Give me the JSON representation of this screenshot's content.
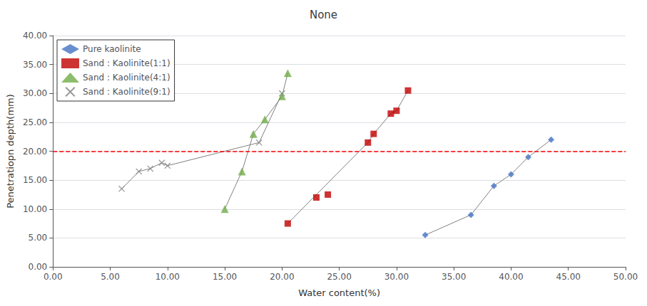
{
  "chart_data": {
    "type": "scatter",
    "title": "None",
    "xlabel": "Water content(%)",
    "ylabel": "Penetratiopn depth(mm)",
    "xlim": [
      0.0,
      50.0
    ],
    "ylim": [
      0.0,
      40.0
    ],
    "xticks": [
      {
        "value": 0.0,
        "label": "0.00"
      },
      {
        "value": 5.0,
        "label": "5.00"
      },
      {
        "value": 10.0,
        "label": "10.00"
      },
      {
        "value": 15.0,
        "label": "15.00"
      },
      {
        "value": 20.0,
        "label": "20.00"
      },
      {
        "value": 25.0,
        "label": "25.00"
      },
      {
        "value": 30.0,
        "label": "30.00"
      },
      {
        "value": 35.0,
        "label": "35.00"
      },
      {
        "value": 40.0,
        "label": "40.00"
      },
      {
        "value": 45.0,
        "label": "45.00"
      },
      {
        "value": 50.0,
        "label": "50.00"
      }
    ],
    "yticks": [
      {
        "value": 0.0,
        "label": "0.00"
      },
      {
        "value": 5.0,
        "label": "5.00"
      },
      {
        "value": 10.0,
        "label": "10.00"
      },
      {
        "value": 15.0,
        "label": "15.00"
      },
      {
        "value": 20.0,
        "label": "20.00"
      },
      {
        "value": 25.0,
        "label": "25.00"
      },
      {
        "value": 30.0,
        "label": "30.00"
      },
      {
        "value": 35.0,
        "label": "35.00"
      },
      {
        "value": 40.0,
        "label": "40.00"
      }
    ],
    "grid": "y",
    "legend": "upper left",
    "hline": {
      "y": 20.0,
      "color": "#ff0000",
      "line_style": "dashed"
    },
    "series": [
      {
        "name": "Pure kaolinite",
        "color": "#4472c4",
        "marker": "diamond",
        "x": [
          32.5,
          36.5,
          38.5,
          40.0,
          41.5,
          43.5
        ],
        "values": [
          5.5,
          9.0,
          14.0,
          16.0,
          19.0,
          22.0
        ],
        "line": {
          "color": "#808080",
          "x": [
            32.5,
            36.5,
            38.5,
            40.0,
            41.5,
            43.5
          ],
          "values": [
            5.5,
            9.0,
            14.0,
            16.0,
            19.0,
            22.0
          ]
        }
      },
      {
        "name": "Sand : Kaolinite(1:1)",
        "color": "#c00000",
        "marker": "square",
        "x": [
          20.5,
          23.0,
          24.0,
          27.5,
          28.0,
          29.5,
          30.0,
          31.0
        ],
        "values": [
          7.5,
          12.0,
          12.5,
          21.5,
          23.0,
          26.5,
          27.0,
          30.5
        ],
        "line": {
          "color": "#808080",
          "x": [
            20.5,
            27.5,
            28.0,
            29.5,
            30.0,
            31.0
          ],
          "values": [
            7.5,
            21.5,
            23.0,
            26.5,
            27.0,
            30.5
          ]
        }
      },
      {
        "name": "Sand : Kaolinite(4:1)",
        "color": "#70ad47",
        "marker": "triangle",
        "x": [
          15.0,
          16.5,
          17.5,
          18.5,
          20.0,
          20.5
        ],
        "values": [
          10.0,
          16.5,
          23.0,
          25.5,
          29.5,
          33.5
        ],
        "line": {
          "color": "#808080",
          "x": [
            15.0,
            16.5,
            17.5,
            18.5,
            20.0,
            20.5
          ],
          "values": [
            10.0,
            16.5,
            23.0,
            25.5,
            29.5,
            33.5
          ]
        }
      },
      {
        "name": "Sand : Kaolinite(9:1)",
        "color": "#7f7f7f",
        "marker": "x",
        "x": [
          6.0,
          7.5,
          8.5,
          9.5,
          10.0,
          18.0,
          20.0
        ],
        "values": [
          13.5,
          16.5,
          17.0,
          18.0,
          17.5,
          21.5,
          30.0
        ],
        "line": {
          "color": "#808080",
          "x": [
            6.0,
            7.5,
            8.5,
            9.5,
            10.0,
            18.0,
            20.0
          ],
          "values": [
            13.5,
            16.5,
            17.0,
            18.0,
            17.5,
            21.5,
            30.0
          ]
        }
      }
    ]
  }
}
